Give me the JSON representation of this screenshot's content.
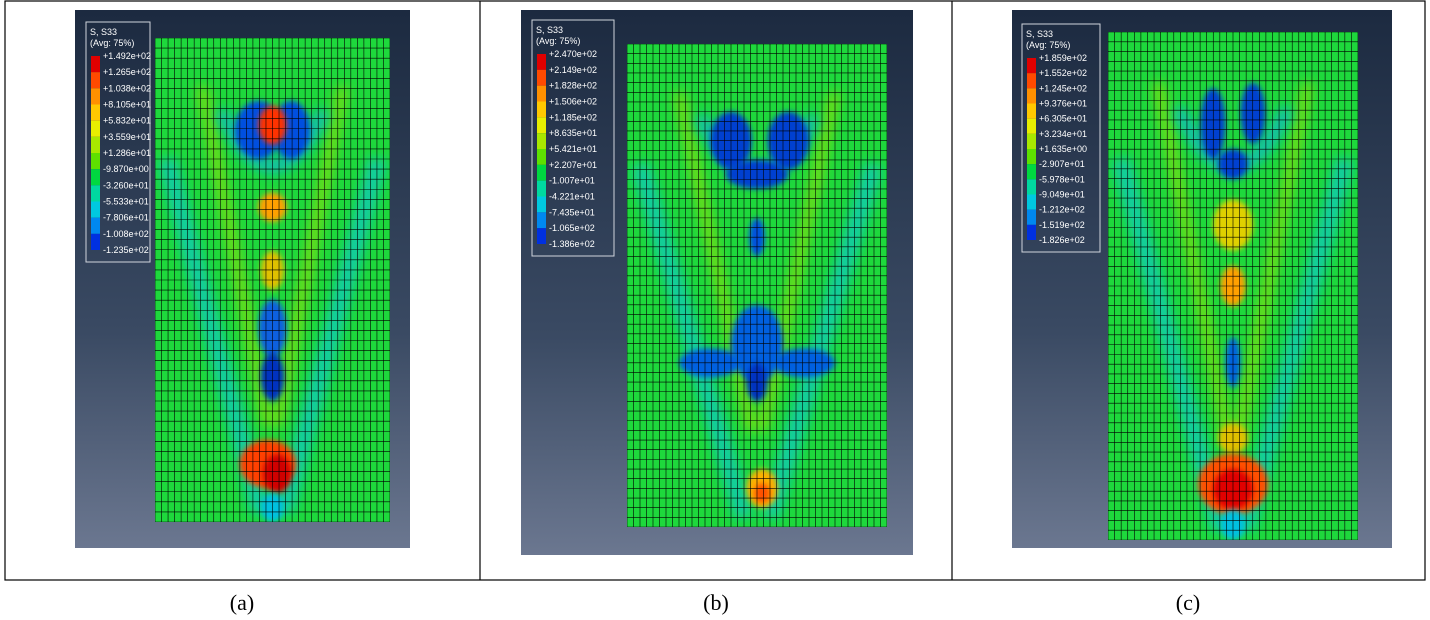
{
  "panels": [
    {
      "legend_title": "S, S33",
      "legend_subtitle": "(Avg: 75%)",
      "legend_values": [
        "+1.492e+02",
        "+1.265e+02",
        "+1.038e+02",
        "+8.105e+01",
        "+5.832e+01",
        "+3.559e+01",
        "+1.286e+01",
        "-9.870e+00",
        "-3.260e+01",
        "-5.533e+01",
        "-7.806e+01",
        "-1.008e+02",
        "-1.235e+02"
      ],
      "caption": "(a)"
    },
    {
      "legend_title": "S, S33",
      "legend_subtitle": "(Avg: 75%)",
      "legend_values": [
        "+2.470e+02",
        "+2.149e+02",
        "+1.828e+02",
        "+1.506e+02",
        "+1.185e+02",
        "+8.635e+01",
        "+5.421e+01",
        "+2.207e+01",
        "-1.007e+01",
        "-4.221e+01",
        "-7.435e+01",
        "-1.065e+02",
        "-1.386e+02"
      ],
      "caption": "(b)"
    },
    {
      "legend_title": "S, S33",
      "legend_subtitle": "(Avg: 75%)",
      "legend_values": [
        "+1.859e+02",
        "+1.552e+02",
        "+1.245e+02",
        "+9.376e+01",
        "+6.305e+01",
        "+3.234e+01",
        "+1.635e+00",
        "-2.907e+01",
        "-5.978e+01",
        "-9.049e+01",
        "-1.212e+02",
        "-1.519e+02",
        "-1.826e+02"
      ],
      "caption": "(c)"
    }
  ]
}
